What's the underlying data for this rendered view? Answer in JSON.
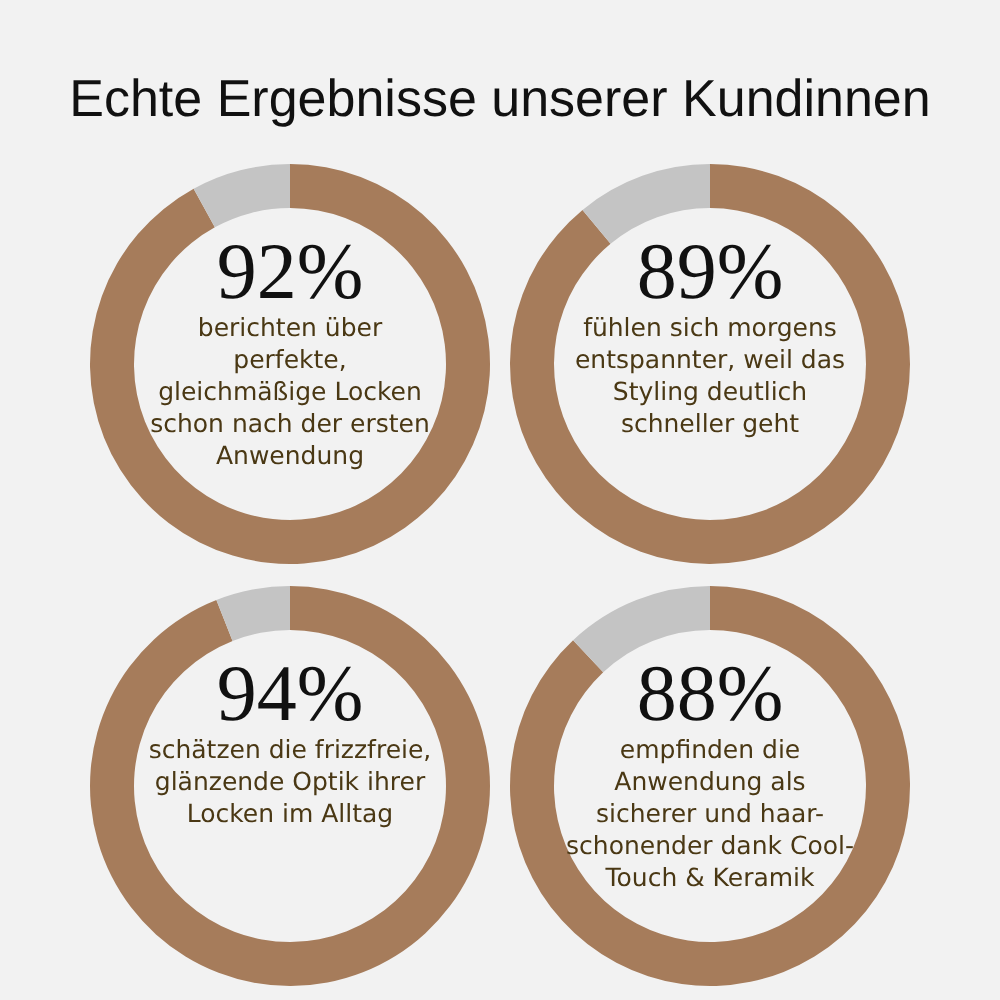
{
  "chart_data": [
    {
      "type": "donut",
      "title": "Echte Ergebnisse unserer Kundinnen",
      "categories": [
        null,
        null
      ],
      "values": [
        92,
        8
      ],
      "colors": [
        "#a67c5b",
        "#c4c4c4"
      ],
      "value_labels": [
        "92%",
        null
      ],
      "annotations": [
        "berichten über perfekte, gleichmäßige Locken schon nach der ersten Anwendung"
      ]
    },
    {
      "type": "donut",
      "categories": [
        null,
        null
      ],
      "values": [
        89,
        11
      ],
      "colors": [
        "#a67c5b",
        "#c4c4c4"
      ],
      "value_labels": [
        "89%",
        null
      ],
      "annotations": [
        "fühlen sich morgens entspannter, weil das Styling deutlich schneller geht"
      ]
    },
    {
      "type": "donut",
      "categories": [
        null,
        null
      ],
      "values": [
        94,
        6
      ],
      "colors": [
        "#a67c5b",
        "#c4c4c4"
      ],
      "value_labels": [
        "94%",
        null
      ],
      "annotations": [
        "schätzen die frizzfreie, glänzende Optik ihrer Locken im Alltag"
      ]
    },
    {
      "type": "donut",
      "categories": [
        null,
        null
      ],
      "values": [
        88,
        12
      ],
      "colors": [
        "#a67c5b",
        "#c4c4c4"
      ],
      "value_labels": [
        "88%",
        null
      ],
      "annotations": [
        "empfinden die Anwendung als sicherer und haar-schonender dank Cool-Touch & Keramik"
      ]
    }
  ]
}
